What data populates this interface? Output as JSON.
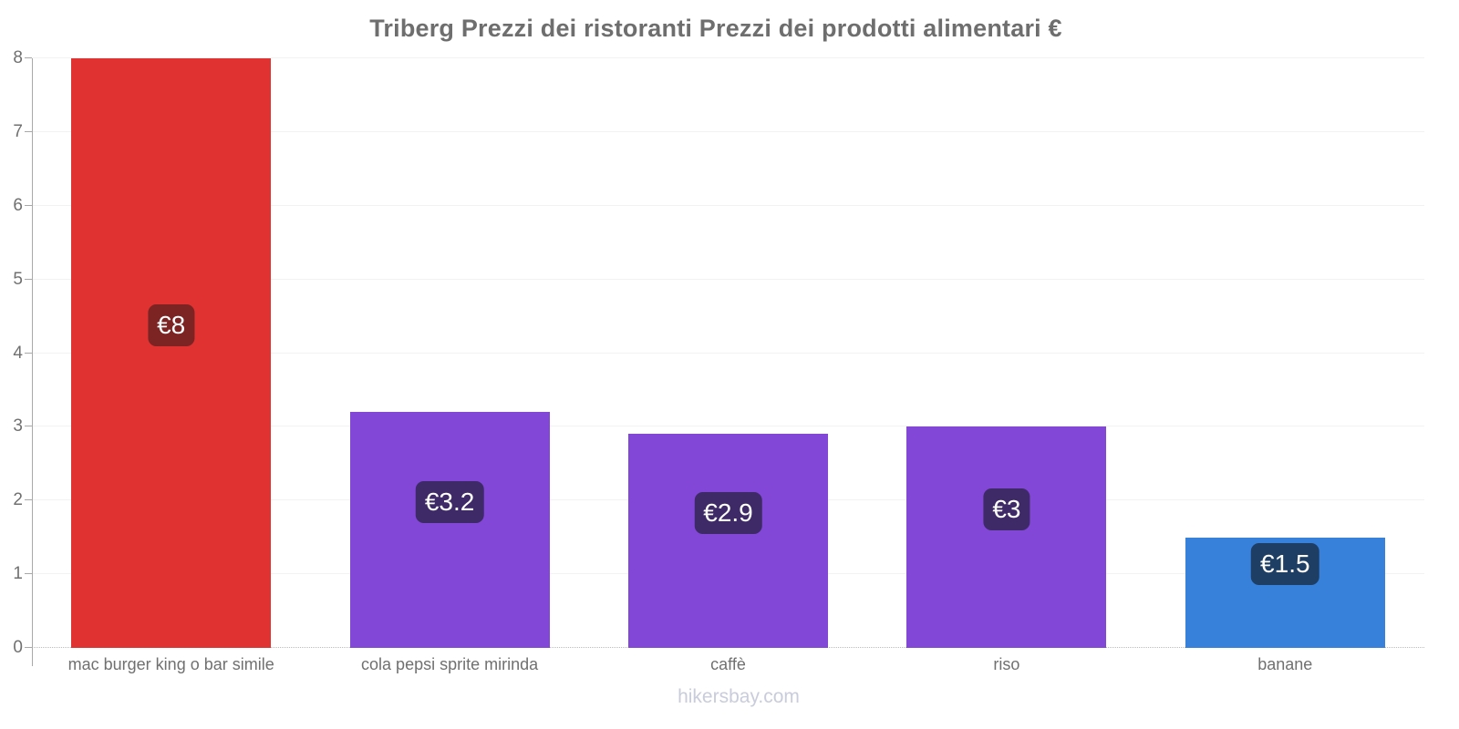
{
  "title": "Triberg Prezzi dei ristoranti Prezzi dei prodotti alimentari €",
  "footer": "hikersbay.com",
  "chart_data": {
    "type": "bar",
    "title": "Triberg Prezzi dei ristoranti Prezzi dei prodotti alimentari €",
    "currency": "€",
    "categories": [
      "mac burger king o bar simile",
      "cola pepsi sprite mirinda",
      "caffè",
      "riso",
      "banane"
    ],
    "values": [
      8,
      3.2,
      2.9,
      3,
      1.5
    ],
    "value_labels": [
      "€8",
      "€3.2",
      "€2.9",
      "€3",
      "€1.5"
    ],
    "bar_colors": [
      "#e03331",
      "#8347d8",
      "#8347d8",
      "#8347d8",
      "#3781db"
    ],
    "badge_colors": [
      "#7b2423",
      "#3e2a66",
      "#3e2a66",
      "#3e2a66",
      "#1e3f63"
    ],
    "xlabel": "",
    "ylabel": "",
    "ylim": [
      0,
      8
    ],
    "yticks": [
      0,
      1,
      2,
      3,
      4,
      5,
      6,
      7,
      8
    ],
    "grid": true,
    "legend": false,
    "watermark": "hikersbay.com"
  }
}
